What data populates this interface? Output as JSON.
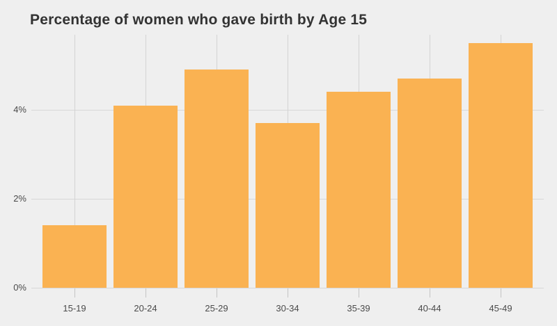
{
  "page": {
    "background_color": "#EFEFEF"
  },
  "chart_data": {
    "type": "bar",
    "title": "Percentage of women who gave birth by Age 15",
    "categories": [
      "15-19",
      "20-24",
      "25-29",
      "30-34",
      "35-39",
      "40-44",
      "45-49"
    ],
    "values": [
      1.4,
      4.1,
      4.9,
      3.7,
      4.4,
      4.7,
      5.5
    ],
    "value_unit": "%",
    "xlabel": "",
    "ylabel": "",
    "ylim": [
      0,
      5.69
    ],
    "yticks": [
      {
        "value": 0,
        "label": "0%"
      },
      {
        "value": 2,
        "label": "2%"
      },
      {
        "value": 4,
        "label": "4%"
      }
    ],
    "grid": true,
    "legend": false,
    "bar_color": "#FAB252",
    "background_color": "#EFEFEF",
    "gridline_color": "#D7D7D7",
    "title_color": "#333333",
    "tick_label_color": "#4A4A4A"
  }
}
